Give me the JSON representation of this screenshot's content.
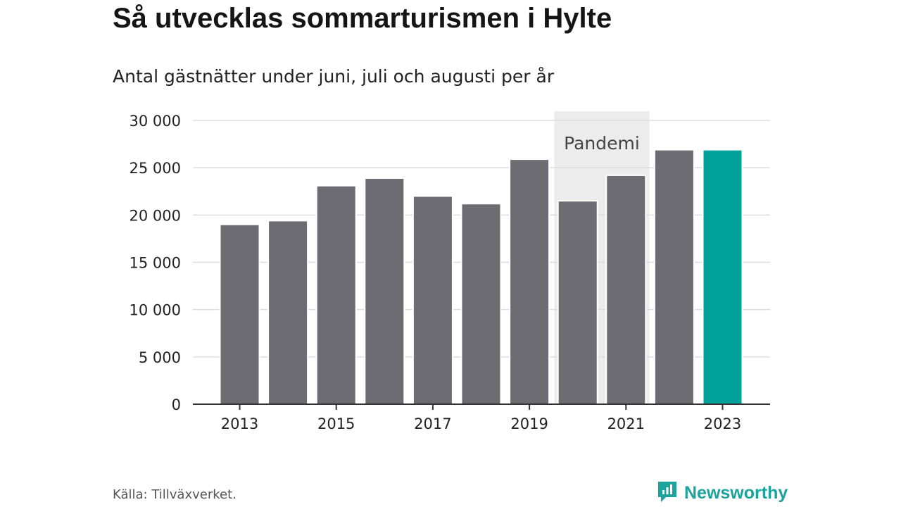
{
  "title": "Så utvecklas sommarturismen i Hylte",
  "subtitle": "Antal gästnätter under juni, juli och augusti per år",
  "source": "Källa: Tillväxverket.",
  "brand": {
    "name": "Newsworthy",
    "icon": "newsworthy-logo-icon"
  },
  "colors": {
    "bar": "#6d6c73",
    "highlight": "#00a19a",
    "shade": "#ececec",
    "grid": "#dddddd",
    "axis": "#333333"
  },
  "chart_data": {
    "type": "bar",
    "categories": [
      "2013",
      "2014",
      "2015",
      "2016",
      "2017",
      "2018",
      "2019",
      "2020",
      "2021",
      "2022",
      "2023"
    ],
    "values": [
      19000,
      19400,
      23100,
      23900,
      22000,
      21200,
      25900,
      21500,
      24200,
      26900,
      26900
    ],
    "highlight_category": "2023",
    "xtick_labels": [
      "2013",
      "2015",
      "2017",
      "2019",
      "2021",
      "2023"
    ],
    "ytick_labels": [
      "0",
      "5 000",
      "10 000",
      "15 000",
      "20 000",
      "25 000",
      "30 000"
    ],
    "ylim": [
      0,
      30000
    ],
    "ystep": 5000,
    "grid": true,
    "shaded_region": {
      "from": "2020",
      "to": "2021",
      "label": "Pandemi"
    },
    "xlabel": "",
    "ylabel": ""
  }
}
